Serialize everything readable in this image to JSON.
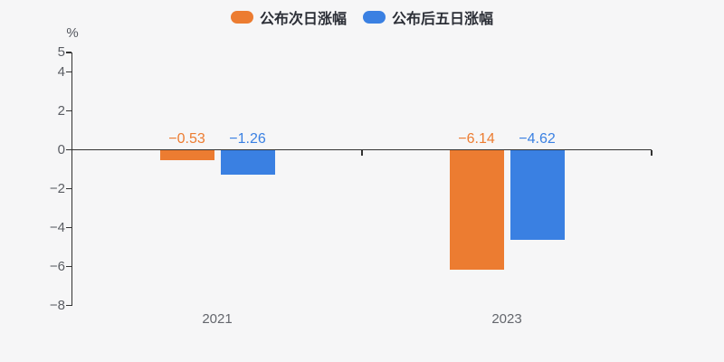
{
  "background": "#f6f6f7",
  "chart_data": {
    "type": "bar",
    "title": "",
    "categories": [
      "2021",
      "2023"
    ],
    "series": [
      {
        "name": "公布次日涨幅",
        "color": "#ec7c31",
        "values": [
          -0.53,
          -6.14
        ]
      },
      {
        "name": "公布后五日涨幅",
        "color": "#3a80e2",
        "values": [
          -1.26,
          -4.62
        ]
      }
    ],
    "xlabel": "",
    "ylabel": "%",
    "ylim": [
      -8,
      5
    ],
    "yticks": [
      5,
      4,
      2,
      0,
      -2,
      -4,
      -6,
      -8
    ],
    "grid": false,
    "legend_position": "top-center",
    "value_label_format": "two decimals with unicode minus, shown above zero line in series color",
    "axis_colors": {
      "axis_line": "#333333",
      "y_tick_label": "#5a5d63",
      "category_label": "#63666c"
    }
  }
}
